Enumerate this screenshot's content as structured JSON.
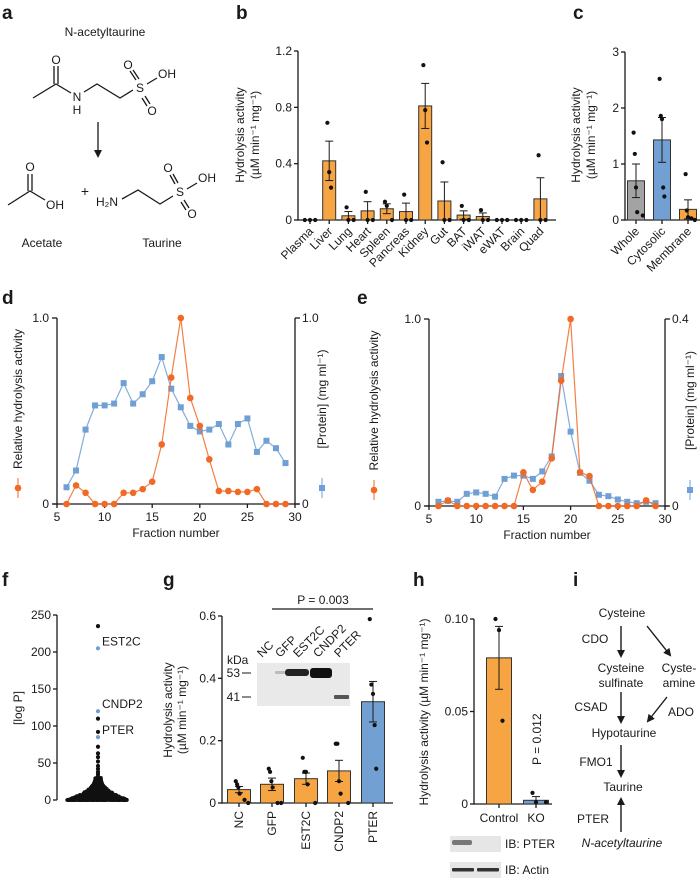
{
  "colors": {
    "orange_bar": "#f7a443",
    "blue_bar": "#72a0d2",
    "grey_bar": "#a3a3a3",
    "orange_line": "#f06a25",
    "blue_line": "#6f9fd4"
  },
  "panel_letters": {
    "a": "a",
    "b": "b",
    "c": "c",
    "d": "d",
    "e": "e",
    "f": "f",
    "g": "g",
    "h": "h",
    "i": "i"
  },
  "panel_a": {
    "title": "N-acetyltaurine",
    "atoms": {
      "O": "O",
      "N": "N",
      "H": "H",
      "S": "S",
      "OH": "OH",
      "H2N": "H₂N",
      "plus": "+"
    },
    "product1": "Acetate",
    "product2": "Taurine"
  },
  "chart_data": [
    {
      "panel": "b",
      "type": "bar",
      "ylabel": "Hydrolysis activity",
      "ylabel2": "(µM min⁻¹ mg⁻¹)",
      "ylim": [
        0,
        1.2
      ],
      "yticks": [
        "0",
        "0.4",
        "0.8",
        "1.2"
      ],
      "categories": [
        "Plasma",
        "Liver",
        "Lung",
        "Heart",
        "Spleen",
        "Pancreas",
        "Kidney",
        "Gut",
        "BAT",
        "iWAT",
        "eWAT",
        "Brain",
        "Quad"
      ],
      "values": [
        0,
        0.42,
        0.03,
        0.065,
        0.08,
        0.06,
        0.81,
        0.135,
        0.035,
        0.025,
        0,
        0,
        0.15
      ],
      "errors": [
        0,
        0.14,
        0.03,
        0.065,
        0.035,
        0.06,
        0.16,
        0.135,
        0.03,
        0.025,
        0,
        0,
        0.15
      ],
      "points": [
        [
          0,
          0,
          0
        ],
        [
          0.69,
          0.34,
          0.23
        ],
        [
          0.09,
          0,
          0
        ],
        [
          0.2,
          0,
          0
        ],
        [
          0.13,
          0.1,
          0
        ],
        [
          0.18,
          0,
          0
        ],
        [
          1.1,
          0.78,
          0.55
        ],
        [
          0.41,
          0,
          0
        ],
        [
          0.1,
          0,
          0
        ],
        [
          0.07,
          0,
          0
        ],
        [
          0,
          0,
          0
        ],
        [
          0,
          0,
          0
        ],
        [
          0.46,
          0,
          0
        ]
      ],
      "bar_colors": [
        "orange"
      ]
    },
    {
      "panel": "c",
      "type": "bar",
      "ylabel": "Hydrolysis activity",
      "ylabel2": "(µM min⁻¹ mg⁻¹)",
      "ylim": [
        0,
        3
      ],
      "yticks": [
        "0",
        "1",
        "2",
        "3"
      ],
      "categories": [
        "Whole",
        "Cytosolic",
        "Membrane"
      ],
      "values": [
        0.7,
        1.43,
        0.19
      ],
      "errors": [
        0.3,
        0.4,
        0.17
      ],
      "points": [
        [
          1.56,
          1.18,
          0.58,
          0.14,
          0.08
        ],
        [
          2.52,
          1.86,
          1.8,
          0.58,
          0.42
        ],
        [
          0.82,
          0.17,
          0.05,
          0.03,
          0
        ]
      ],
      "bar_colors": [
        "grey",
        "blue",
        "orange"
      ]
    },
    {
      "panel": "d",
      "type": "line",
      "xlabel": "Fraction number",
      "xlim": [
        5,
        30
      ],
      "xticks": [
        "5",
        "10",
        "15",
        "20",
        "25",
        "30"
      ],
      "ylabel_left": "Relative hydrolysis activity",
      "ylim_left": [
        0,
        1.0
      ],
      "yticks_left": [
        "0",
        "1.0"
      ],
      "ylabel_right": "[Protein] (mg ml⁻¹)",
      "ylim_right": [
        0,
        1.0
      ],
      "yticks_right": [
        "0",
        "1.0"
      ],
      "x": [
        6,
        7,
        8,
        9,
        10,
        11,
        12,
        13,
        14,
        15,
        16,
        17,
        18,
        19,
        20,
        21,
        22,
        23,
        24,
        25,
        26,
        27,
        28,
        29
      ],
      "series": [
        {
          "axis": "left",
          "marker": "circle",
          "color": "orange",
          "values": [
            0,
            0.1,
            0.06,
            0,
            0,
            0,
            0.06,
            0.06,
            0.08,
            0.12,
            0.32,
            0.68,
            1.0,
            0.57,
            0.42,
            0.24,
            0.07,
            0.07,
            0.065,
            0.065,
            0.08,
            0,
            0,
            0
          ]
        },
        {
          "axis": "right",
          "marker": "square",
          "color": "blue",
          "values": [
            0.09,
            0.18,
            0.4,
            0.53,
            0.53,
            0.54,
            0.65,
            0.54,
            0.59,
            0.66,
            0.79,
            0.62,
            0.52,
            0.42,
            0.39,
            0.4,
            0.43,
            0.32,
            0.43,
            0.46,
            0.28,
            0.34,
            0.3,
            0.22
          ]
        }
      ]
    },
    {
      "panel": "e",
      "type": "line",
      "xlabel": "Fraction number",
      "xlim": [
        5,
        30
      ],
      "xticks": [
        "5",
        "10",
        "15",
        "20",
        "25",
        "30"
      ],
      "ylabel_left": "Relative hydrolysis activity",
      "ylim_left": [
        0,
        1.0
      ],
      "yticks_left": [
        "0",
        "1.0"
      ],
      "ylabel_right": "[Protein] (mg ml⁻¹)",
      "ylim_right": [
        0,
        0.4
      ],
      "yticks_right": [
        "0",
        "0.4"
      ],
      "x": [
        6,
        7,
        8,
        9,
        10,
        11,
        12,
        13,
        14,
        15,
        16,
        17,
        18,
        19,
        20,
        21,
        22,
        23,
        24,
        25,
        26,
        27,
        28,
        29
      ],
      "series": [
        {
          "axis": "left",
          "marker": "circle",
          "color": "orange",
          "values": [
            0,
            0.03,
            0,
            0,
            0,
            0,
            0,
            0,
            0,
            0.18,
            0.086,
            0.13,
            0.255,
            0.67,
            1.0,
            0.18,
            0.16,
            0,
            0,
            0,
            0,
            0,
            0.03,
            0
          ]
        },
        {
          "axis": "right",
          "marker": "square",
          "color": "blue",
          "values": [
            0.009,
            0.011,
            0.009,
            0.026,
            0.029,
            0.026,
            0.02,
            0.058,
            0.065,
            0.065,
            0.058,
            0.074,
            0.106,
            0.278,
            0.159,
            0.071,
            0.054,
            0.024,
            0.021,
            0.014,
            0.009,
            0.006,
            0.009,
            0.006
          ]
        }
      ]
    },
    {
      "panel": "f",
      "type": "scatter",
      "ylabel": "[log P]",
      "ylim": [
        0,
        250
      ],
      "yticks": [
        "0",
        "50",
        "100",
        "150",
        "200",
        "250"
      ],
      "labeled_points": [
        {
          "label": "EST2C",
          "value": 205,
          "color": "blue"
        },
        {
          "label": "CNDP2",
          "value": 120,
          "color": "blue"
        },
        {
          "label": "PTER",
          "value": 85,
          "color": "blue"
        }
      ],
      "other_points": [
        235,
        110,
        92,
        72,
        63,
        58,
        52,
        46,
        42,
        38,
        35,
        32
      ]
    },
    {
      "panel": "g",
      "type": "bar",
      "ylabel": "Hydrolysis activity",
      "ylabel2": "(µM min⁻¹ mg⁻¹)",
      "ylim": [
        0,
        0.6
      ],
      "yticks": [
        "0",
        "0.2",
        "0.4",
        "0.6"
      ],
      "categories": [
        "NC",
        "GFP",
        "EST2C",
        "CNDP2",
        "PTER"
      ],
      "values": [
        0.043,
        0.06,
        0.078,
        0.103,
        0.325
      ],
      "errors": [
        0.01,
        0.02,
        0.018,
        0.034,
        0.065
      ],
      "points": [
        [
          0.07,
          0.06,
          0.05,
          0.03,
          0.01,
          0
        ],
        [
          0.11,
          0.1,
          0.07,
          0.05,
          0,
          0
        ],
        [
          0.145,
          0.1,
          0.1,
          0.06,
          0
        ],
        [
          0.19,
          0.19,
          0.07,
          0.03,
          0
        ],
        [
          0.59,
          0.38,
          0.35,
          0.25,
          0.11
        ]
      ],
      "bar_colors": [
        "orange",
        "orange",
        "orange",
        "orange",
        "blue"
      ],
      "annotation": "P = 0.003",
      "inset_blot": {
        "unit": "kDa",
        "markers": [
          "53",
          "41"
        ],
        "lanes": [
          "NC",
          "GFP",
          "EST2C",
          "CNDP2",
          "PTER"
        ]
      }
    },
    {
      "panel": "h",
      "type": "bar",
      "ylabel": "Hydrolysis activity (µM min⁻¹ mg⁻¹)",
      "ylim": [
        0,
        0.1
      ],
      "yticks": [
        "0",
        "0.05",
        "0.10"
      ],
      "categories": [
        "Control",
        "KO"
      ],
      "values": [
        0.079,
        0.002
      ],
      "errors": [
        0.017,
        0.002
      ],
      "points": [
        [
          0.1,
          0.094,
          0.045
        ],
        [
          0.006,
          0.001,
          0.001
        ]
      ],
      "bar_colors": [
        "orange",
        "blue"
      ],
      "annotation": "P = 0.012",
      "blots": [
        "IB: PTER",
        "IB: Actin"
      ]
    }
  ],
  "panel_i": {
    "nodes": {
      "cysteine": "Cysteine",
      "cysteine_sulfinate_1": "Cysteine",
      "cysteine_sulfinate_2": "sulfinate",
      "cysteamine_1": "Cyste-",
      "cysteamine_2": "amine",
      "hypotaurine": "Hypotaurine",
      "taurine": "Taurine",
      "n_acetyltaurine": "N-acetyltaurine"
    },
    "enzymes": {
      "cdo": "CDO",
      "csad": "CSAD",
      "ado": "ADO",
      "fmo1": "FMO1",
      "pter": "PTER"
    }
  }
}
